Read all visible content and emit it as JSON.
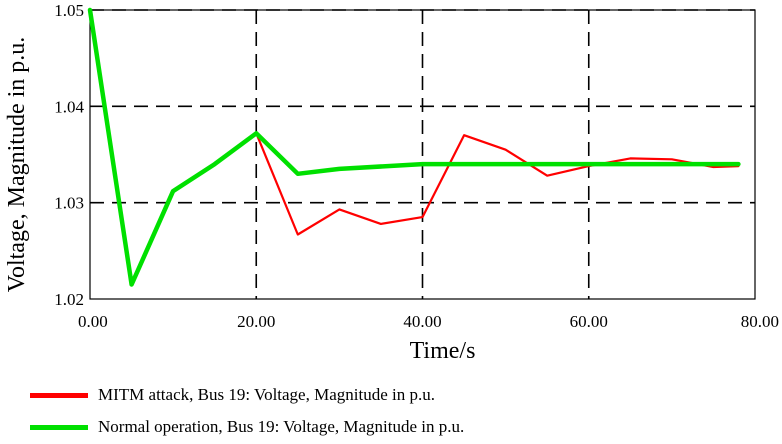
{
  "chart_data": {
    "type": "line",
    "xlabel": "Time/s",
    "ylabel": "Voltage, Magnitude in p.u.",
    "xlim": [
      0,
      80
    ],
    "ylim": [
      1.02,
      1.05
    ],
    "x_ticks": [
      "0.00",
      "20.00",
      "40.00",
      "60.00",
      "80.00"
    ],
    "y_ticks": [
      "1.02",
      "1.03",
      "1.04",
      "1.05"
    ],
    "grid": true,
    "legend_position": "bottom",
    "series": [
      {
        "name": "MITM attack, Bus 19: Voltage, Magnitude in p.u.",
        "color": "#ff0000",
        "x": [
          0,
          5,
          10,
          15,
          20,
          25,
          30,
          35,
          40,
          45,
          50,
          55,
          60,
          65,
          70,
          75,
          78
        ],
        "y": [
          1.05,
          1.0215,
          1.0312,
          1.034,
          1.0372,
          1.0267,
          1.0293,
          1.0278,
          1.0285,
          1.037,
          1.0355,
          1.0328,
          1.0338,
          1.0346,
          1.0345,
          1.0337,
          1.0338
        ]
      },
      {
        "name": "Normal operation, Bus 19: Voltage, Magnitude in p.u.",
        "color": "#00e000",
        "x": [
          0,
          5,
          10,
          15,
          20,
          25,
          30,
          40,
          50,
          60,
          70,
          78
        ],
        "y": [
          1.05,
          1.0215,
          1.0312,
          1.034,
          1.0372,
          1.033,
          1.0335,
          1.034,
          1.034,
          1.034,
          1.034,
          1.034
        ]
      }
    ]
  }
}
